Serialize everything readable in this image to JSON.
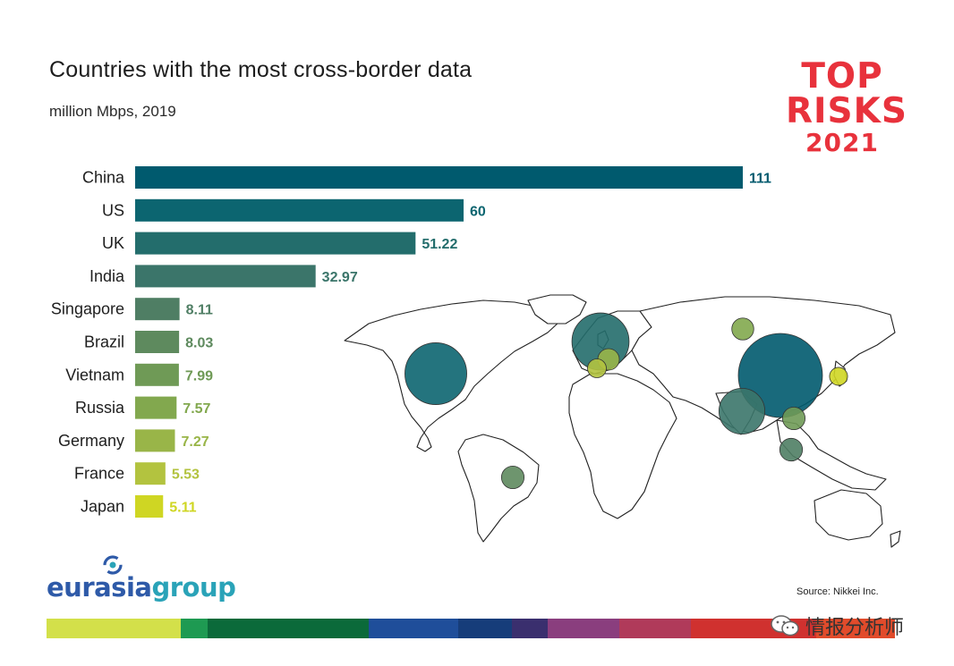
{
  "header": {
    "title": "Countries with the most cross-border data",
    "subtitle": "million Mbps, 2019"
  },
  "brand": {
    "top_line1": "TOP",
    "top_line2": "RISKS",
    "top_line3": "2021",
    "top_color": "#e8323c",
    "eurasia_part1": "eurasia",
    "eurasia_part2": "group",
    "source": "Source: Nikkei Inc.",
    "watermark": "情报分析师"
  },
  "chart_data": {
    "type": "bar",
    "orientation": "horizontal",
    "categories": [
      "China",
      "US",
      "UK",
      "India",
      "Singapore",
      "Brazil",
      "Vietnam",
      "Russia",
      "Germany",
      "France",
      "Japan"
    ],
    "values": [
      111,
      60,
      51.22,
      32.97,
      8.11,
      8.03,
      7.99,
      7.57,
      7.27,
      5.53,
      5.11
    ],
    "value_labels": [
      "111",
      "60",
      "51.22",
      "32.97",
      "8.11",
      "8.03",
      "7.99",
      "7.57",
      "7.27",
      "5.53",
      "5.11"
    ],
    "colors": [
      "#005a6e",
      "#0c6570",
      "#236d6c",
      "#3b756a",
      "#4f7e64",
      "#5e8a5e",
      "#6f9a56",
      "#82a84e",
      "#99b548",
      "#b3c33f",
      "#cfd623"
    ],
    "xlim": [
      0,
      111
    ],
    "title": "Countries with the most cross-border data",
    "subtitle": "million Mbps, 2019",
    "grid": false
  },
  "map_bubbles": [
    {
      "country": "US",
      "value": 60,
      "color": "#0c6570"
    },
    {
      "country": "UK",
      "value": 51.22,
      "color": "#236d6c"
    },
    {
      "country": "Russia",
      "value": 7.57,
      "color": "#82a84e"
    },
    {
      "country": "China",
      "value": 111,
      "color": "#005a6e"
    },
    {
      "country": "Japan",
      "value": 5.11,
      "color": "#cfd623"
    },
    {
      "country": "India",
      "value": 32.97,
      "color": "#3b756a"
    },
    {
      "country": "Vietnam",
      "value": 7.99,
      "color": "#6f9a56"
    },
    {
      "country": "Singapore",
      "value": 8.11,
      "color": "#4f7e64"
    },
    {
      "country": "Brazil",
      "value": 8.03,
      "color": "#5e8a5e"
    },
    {
      "country": "Germany",
      "value": 7.27,
      "color": "#99b548"
    },
    {
      "country": "France",
      "value": 5.53,
      "color": "#b3c33f"
    }
  ],
  "stripe_colors": [
    "#d3e04a",
    "#1e9a52",
    "#0b6a3a",
    "#1f4e9a",
    "#163d7a",
    "#3a2f6e",
    "#8a3e7e",
    "#b03a5a",
    "#d0312f",
    "#e14b2b"
  ]
}
